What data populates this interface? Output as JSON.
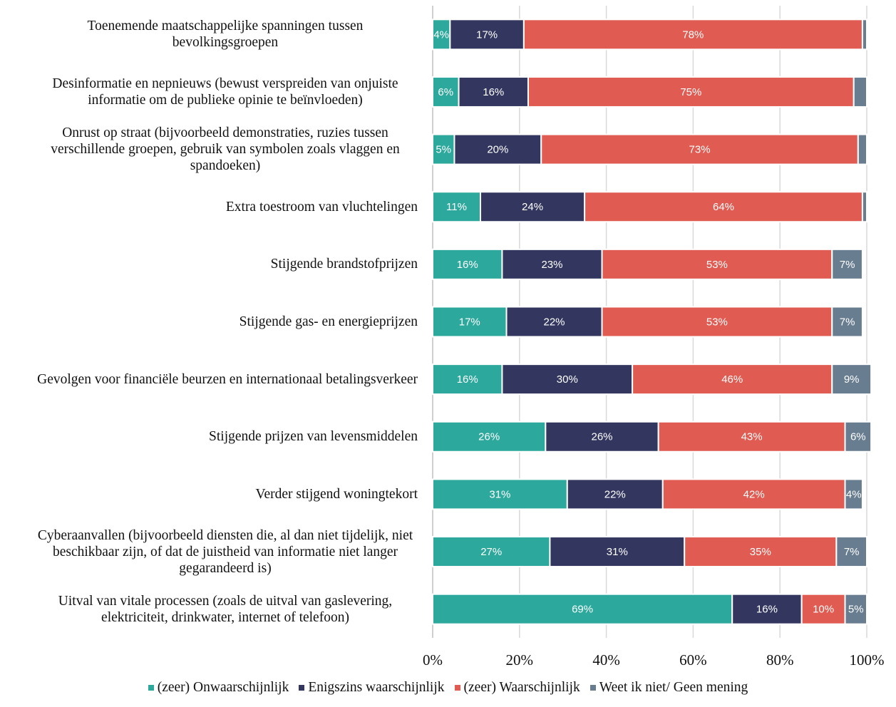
{
  "chart_data": {
    "type": "stacked_barh",
    "categories": [
      "Toenemende maatschappelijke spanningen tussen bevolkingsgroepen",
      "Desinformatie en nepnieuws (bewust verspreiden van onjuiste informatie om de publieke opinie te beïnvloeden)",
      "Onrust op straat (bijvoorbeeld demonstraties, ruzies tussen verschillende groepen, gebruik van symbolen zoals vlaggen en spandoeken)",
      "Extra toestroom van vluchtelingen",
      "Stijgende brandstofprijzen",
      "Stijgende gas- en energieprijzen",
      "Gevolgen voor financiële beurzen en internationaal betalingsverkeer",
      "Stijgende prijzen van levensmiddelen",
      "Verder stijgend woningtekort",
      "Cyberaanvallen (bijvoorbeeld diensten die, al dan niet tijdelijk, niet beschikbaar zijn, of dat de juistheid van informatie niet langer gegarandeerd is)",
      "Uitval van vitale processen (zoals de uitval van gaslevering, elektriciteit, drinkwater, internet of telefoon)"
    ],
    "series": [
      {
        "name": "(zeer) Onwaarschijnlijk",
        "color": "#2ca89c",
        "values": [
          4,
          6,
          5,
          11,
          16,
          17,
          16,
          26,
          31,
          27,
          69
        ],
        "value_labels": [
          "4%",
          "6%",
          "5%",
          "11%",
          "16%",
          "17%",
          "16%",
          "26%",
          "31%",
          "27%",
          "69%"
        ]
      },
      {
        "name": "Enigszins waarschijnlijk",
        "color": "#33375f",
        "values": [
          17,
          16,
          20,
          24,
          23,
          22,
          30,
          26,
          22,
          31,
          16
        ],
        "value_labels": [
          "17%",
          "16%",
          "20%",
          "24%",
          "23%",
          "22%",
          "30%",
          "26%",
          "22%",
          "31%",
          "16%"
        ]
      },
      {
        "name": "(zeer) Waarschijnlijk",
        "color": "#e05b51",
        "values": [
          78,
          75,
          73,
          64,
          53,
          53,
          46,
          43,
          42,
          35,
          10
        ],
        "value_labels": [
          "78%",
          "75%",
          "73%",
          "64%",
          "53%",
          "53%",
          "46%",
          "43%",
          "42%",
          "35%",
          "10%"
        ]
      },
      {
        "name": "Weet ik niet/ Geen mening",
        "color": "#687d90",
        "values": [
          1,
          3,
          2,
          1,
          7,
          7,
          9,
          6,
          4,
          7,
          5
        ],
        "value_labels": [
          null,
          null,
          null,
          null,
          "7%",
          "7%",
          "9%",
          "6%",
          "4%",
          "7%",
          "5%"
        ]
      }
    ],
    "xlim": [
      0,
      100
    ],
    "xticks": [
      {
        "value": 0,
        "label": "0%"
      },
      {
        "value": 20,
        "label": "20%"
      },
      {
        "value": 40,
        "label": "40%"
      },
      {
        "value": 60,
        "label": "60%"
      },
      {
        "value": 80,
        "label": "80%"
      },
      {
        "value": 100,
        "label": "100%"
      }
    ],
    "grid": true,
    "legend": "bottom"
  }
}
